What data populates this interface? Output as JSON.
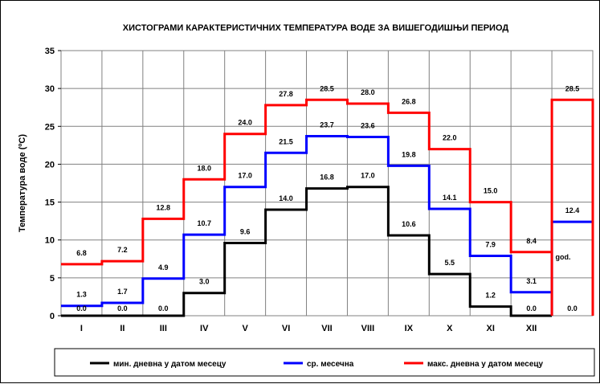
{
  "chart_data": {
    "type": "line",
    "title": "ХИСТОГРАМИ КАРАКТЕРИСТИЧНИХ ТЕМПЕРАТУРА ВОДЕ ЗА ВИШЕГОДИШЊИ ПЕРИОД",
    "ylabel": "Температура воде (ºC)",
    "xlabel": "",
    "ylim": [
      0,
      35
    ],
    "yticks": [
      0,
      5,
      10,
      15,
      20,
      25,
      30,
      35
    ],
    "categories": [
      "I",
      "II",
      "III",
      "IV",
      "V",
      "VI",
      "VII",
      "VIII",
      "IX",
      "X",
      "XI",
      "XII",
      ""
    ],
    "annual_label": "god.",
    "series": [
      {
        "name": "мин. дневна у датом месецу",
        "color": "#000000",
        "values": [
          0.0,
          0.0,
          0.0,
          3.0,
          9.6,
          14.0,
          16.8,
          17.0,
          10.6,
          5.5,
          1.2,
          0.0,
          0.0
        ],
        "labels": [
          "0.0",
          "0.0",
          "0.0",
          "3.0",
          "9.6",
          "14.0",
          "16.8",
          "17.0",
          "10.6",
          "5.5",
          "1.2",
          "0.0",
          "0.0"
        ]
      },
      {
        "name": "ср. месечна",
        "color": "#0000ff",
        "values": [
          1.3,
          1.7,
          4.9,
          10.7,
          17.0,
          21.5,
          23.7,
          23.6,
          19.8,
          14.1,
          7.9,
          3.1,
          12.4
        ],
        "labels": [
          "1.3",
          "1.7",
          "4.9",
          "10.7",
          "17.0",
          "21.5",
          "23.7",
          "23.6",
          "19.8",
          "14.1",
          "7.9",
          "3.1",
          "12.4"
        ]
      },
      {
        "name": "макс. дневна у датом месецу",
        "color": "#ff0000",
        "values": [
          6.8,
          7.2,
          12.8,
          18.0,
          24.0,
          27.8,
          28.5,
          28.0,
          26.8,
          22.0,
          15.0,
          8.4,
          28.5
        ],
        "labels": [
          "6.8",
          "7.2",
          "12.8",
          "18.0",
          "24.0",
          "27.8",
          "28.5",
          "28.0",
          "26.8",
          "22.0",
          "15.0",
          "8.4",
          "28.5"
        ]
      }
    ],
    "grid": true,
    "legend_position": "bottom"
  }
}
